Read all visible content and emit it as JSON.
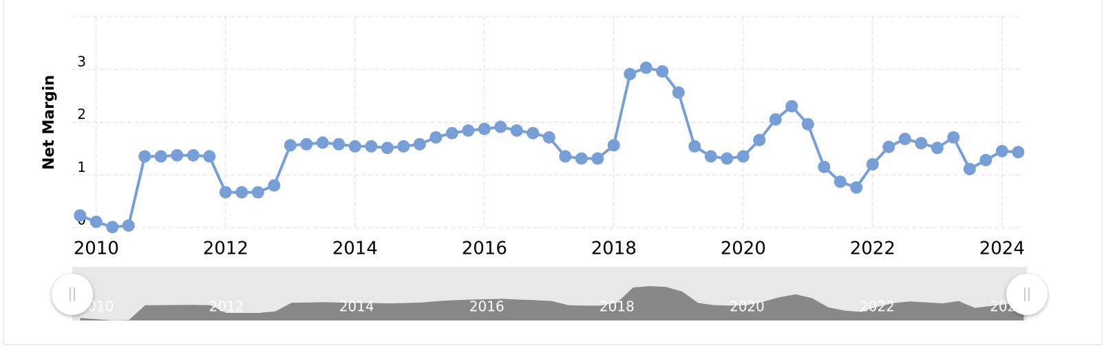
{
  "chart_data": {
    "type": "line",
    "y_label": "Net Margin",
    "x": [
      2009.75,
      2010,
      2010.25,
      2010.5,
      2010.75,
      2011,
      2011.25,
      2011.5,
      2011.75,
      2012,
      2012.25,
      2012.5,
      2012.75,
      2013,
      2013.25,
      2013.5,
      2013.75,
      2014,
      2014.25,
      2014.5,
      2014.75,
      2015,
      2015.25,
      2015.5,
      2015.75,
      2016,
      2016.25,
      2016.5,
      2016.75,
      2017,
      2017.25,
      2017.5,
      2017.75,
      2018,
      2018.25,
      2018.5,
      2018.75,
      2019,
      2019.25,
      2019.5,
      2019.75,
      2020,
      2020.25,
      2020.5,
      2020.75,
      2021,
      2021.25,
      2021.5,
      2021.75,
      2022,
      2022.25,
      2022.5,
      2022.75,
      2023,
      2023.25,
      2023.5,
      2023.75,
      2024,
      2024.25
    ],
    "values": [
      0.23,
      0.11,
      0.01,
      0.04,
      1.35,
      1.35,
      1.37,
      1.37,
      1.35,
      0.67,
      0.67,
      0.67,
      0.8,
      1.56,
      1.58,
      1.61,
      1.58,
      1.54,
      1.54,
      1.51,
      1.54,
      1.58,
      1.71,
      1.79,
      1.84,
      1.87,
      1.91,
      1.84,
      1.79,
      1.71,
      1.35,
      1.31,
      1.31,
      1.56,
      2.91,
      3.03,
      2.96,
      2.56,
      1.54,
      1.35,
      1.31,
      1.35,
      1.66,
      2.05,
      2.3,
      1.96,
      1.15,
      0.87,
      0.76,
      1.2,
      1.53,
      1.68,
      1.6,
      1.51,
      1.71,
      1.11,
      1.28,
      1.45,
      1.43
    ],
    "color": "#779fd6",
    "xlim": [
      2009.63,
      2024.3
    ],
    "xticks": [
      2010,
      2012,
      2014,
      2016,
      2018,
      2020,
      2022,
      2024
    ],
    "ylim": [
      0,
      4
    ],
    "yticks": [
      0,
      1,
      2,
      3
    ],
    "grid": true
  }
}
